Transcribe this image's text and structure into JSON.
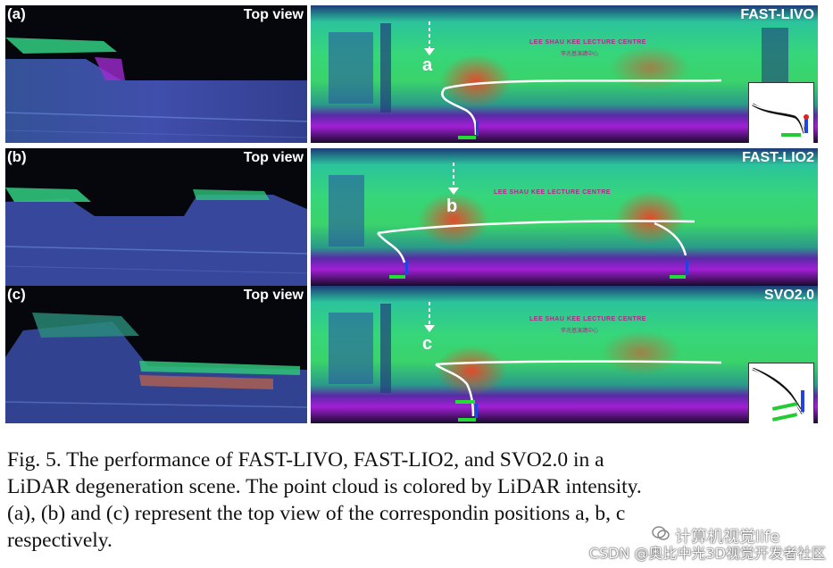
{
  "rows": [
    {
      "id": "a",
      "label": "(a)",
      "view_label": "Top view",
      "method": "FAST-LIVO",
      "marker": "a",
      "sign_main": "LEE SHAU KEE LECTURE CENTRE",
      "sign_sub": "李兆基演講中心",
      "has_inset": true
    },
    {
      "id": "b",
      "label": "(b)",
      "view_label": "Top view",
      "method": "FAST-LIO2",
      "marker": "b",
      "sign_main": "LEE SHAU KEE LECTURE CENTRE",
      "sign_sub": "",
      "has_inset": false
    },
    {
      "id": "c",
      "label": "(c)",
      "view_label": "Top view",
      "method": "SVO2.0",
      "marker": "c",
      "sign_main": "LEE SHAU KEE LECTURE CENTRE",
      "sign_sub": "李兆基演講中心",
      "has_inset": true
    }
  ],
  "caption": {
    "line1": "Fig. 5.   The performance of FAST-LIVO, FAST-LIO2, and SVO2.0 in a",
    "line2": "LiDAR degeneration scene. The point cloud is colored by LiDAR intensity.",
    "line3": "(a), (b) and (c) represent the top view of the correspondin  positions a, b, c",
    "line4": "respectively."
  },
  "watermarks": {
    "wechat": "计算机视觉life",
    "csdn": "CSDN @奥比中光3D视觉开发者社区"
  },
  "colors": {
    "trajectory": "#ffffff",
    "point_cloud_hot": "#e8452a",
    "point_cloud_mid": "#36d67a",
    "ground": "#a21fd6"
  }
}
